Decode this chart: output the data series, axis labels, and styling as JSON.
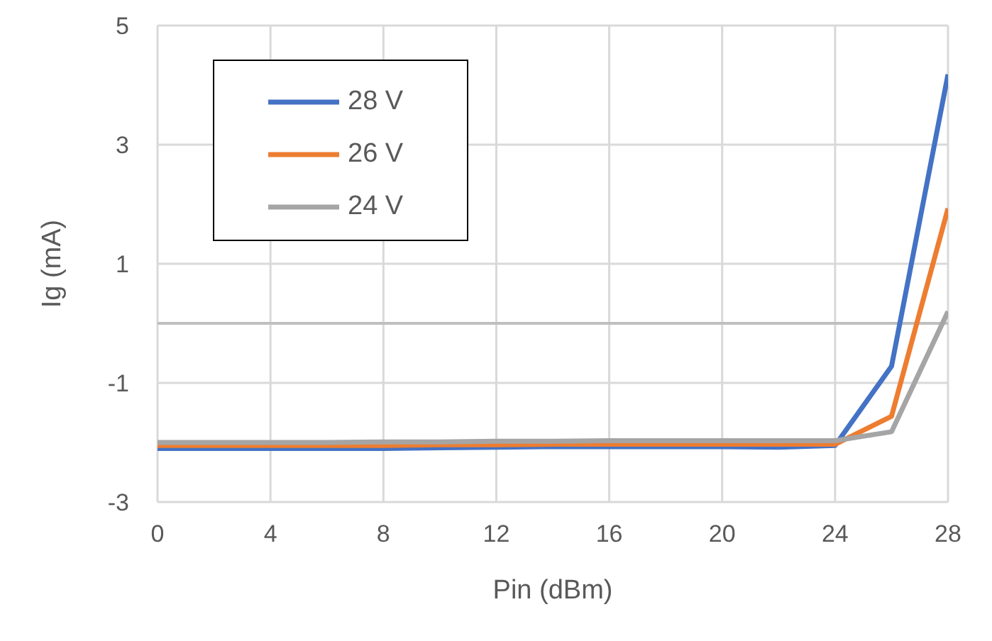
{
  "chart_data": {
    "type": "line",
    "xlabel": "Pin (dBm)",
    "ylabel": "Ig (mA)",
    "x": [
      0,
      2,
      4,
      6,
      8,
      10,
      12,
      14,
      16,
      18,
      20,
      22,
      24,
      26,
      28
    ],
    "series": [
      {
        "name": "28 V",
        "color": "#4472c4",
        "values": [
          -2.1,
          -2.1,
          -2.1,
          -2.1,
          -2.1,
          -2.09,
          -2.08,
          -2.07,
          -2.07,
          -2.07,
          -2.07,
          -2.08,
          -2.05,
          -0.72,
          4.18
        ]
      },
      {
        "name": "26 V",
        "color": "#ed7d31",
        "values": [
          -2.05,
          -2.05,
          -2.05,
          -2.05,
          -2.05,
          -2.04,
          -2.04,
          -2.03,
          -2.03,
          -2.03,
          -2.03,
          -2.03,
          -2.03,
          -1.56,
          1.93
        ]
      },
      {
        "name": "24 V",
        "color": "#a5a5a5",
        "values": [
          -2.0,
          -2.0,
          -2.0,
          -2.0,
          -1.99,
          -1.99,
          -1.98,
          -1.98,
          -1.97,
          -1.97,
          -1.97,
          -1.97,
          -1.97,
          -1.82,
          0.2
        ]
      }
    ],
    "xlim": [
      0,
      28
    ],
    "xticks": [
      0,
      4,
      8,
      12,
      16,
      20,
      24,
      28
    ],
    "ylim": [
      -3,
      5
    ],
    "yticks": [
      -3,
      -1,
      1,
      3,
      5
    ],
    "ref_lines": [
      {
        "axis": "y",
        "value": 0,
        "color": "#bfbfbf"
      }
    ],
    "grid": true,
    "legend": "top left",
    "marker": "none",
    "line_style": "solid"
  }
}
